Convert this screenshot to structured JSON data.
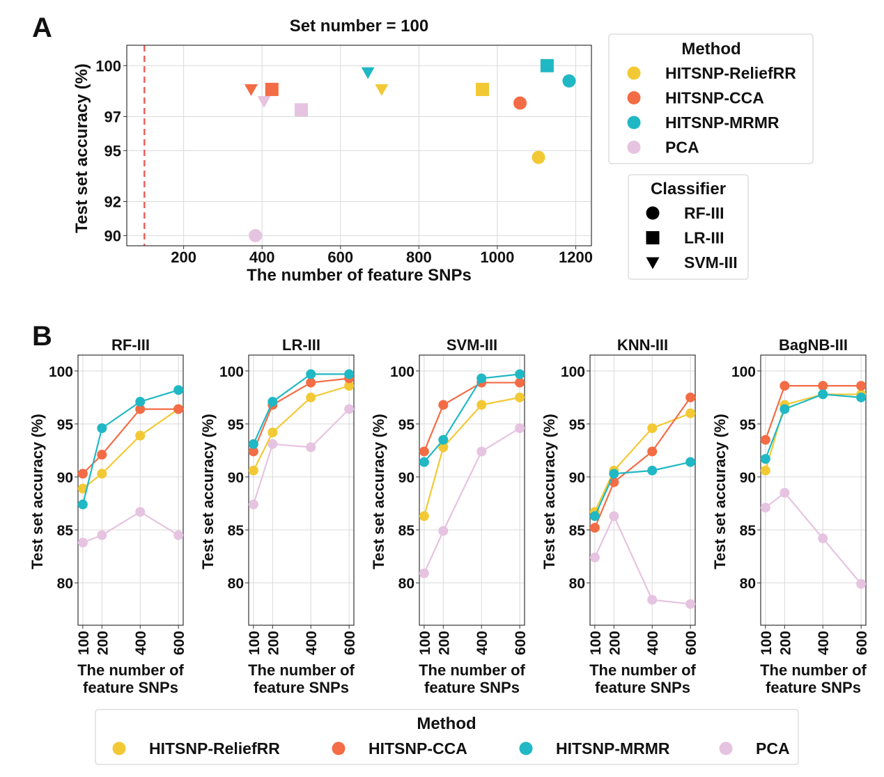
{
  "panel_letters": {
    "a": "A",
    "b": "B"
  },
  "colors": {
    "HITSNP-ReliefRR": "#f2c935",
    "HITSNP-CCA": "#f36c45",
    "HITSNP-MRMR": "#20b8c4",
    "PCA": "#e6c3e0",
    "reference_line": "#e8605a",
    "grid": "#d9d9d9"
  },
  "legends": {
    "method_title": "Method",
    "methods": [
      "HITSNP-ReliefRR",
      "HITSNP-CCA",
      "HITSNP-MRMR",
      "PCA"
    ],
    "classifier_title": "Classifier",
    "classifiers": [
      {
        "name": "RF-III",
        "marker": "circle"
      },
      {
        "name": "LR-III",
        "marker": "square"
      },
      {
        "name": "SVM-III",
        "marker": "triangle-down"
      }
    ]
  },
  "chart_data": [
    {
      "panel": "A",
      "type": "scatter",
      "title": "Set number = 100",
      "xlabel": "The number of feature SNPs",
      "ylabel": "Test set accuracy (%)",
      "xlim": [
        55,
        1240
      ],
      "ylim": [
        89.4,
        101.2
      ],
      "xticks": [
        200,
        400,
        600,
        800,
        1000,
        1200
      ],
      "yticks": [
        90,
        92,
        95,
        97,
        100
      ],
      "grid": true,
      "reference_line_x": 100,
      "points": [
        {
          "method": "HITSNP-ReliefRR",
          "classifier": "RF-III",
          "x": 1105,
          "y": 94.6
        },
        {
          "method": "HITSNP-ReliefRR",
          "classifier": "LR-III",
          "x": 962,
          "y": 98.6
        },
        {
          "method": "HITSNP-ReliefRR",
          "classifier": "SVM-III",
          "x": 705,
          "y": 98.6
        },
        {
          "method": "HITSNP-CCA",
          "classifier": "RF-III",
          "x": 1058,
          "y": 97.8
        },
        {
          "method": "HITSNP-CCA",
          "classifier": "LR-III",
          "x": 425,
          "y": 98.6
        },
        {
          "method": "HITSNP-CCA",
          "classifier": "SVM-III",
          "x": 372,
          "y": 98.6
        },
        {
          "method": "HITSNP-MRMR",
          "classifier": "RF-III",
          "x": 1183,
          "y": 99.1
        },
        {
          "method": "HITSNP-MRMR",
          "classifier": "LR-III",
          "x": 1127,
          "y": 100.0
        },
        {
          "method": "HITSNP-MRMR",
          "classifier": "SVM-III",
          "x": 670,
          "y": 99.6
        },
        {
          "method": "PCA",
          "classifier": "RF-III",
          "x": 383,
          "y": 90.0
        },
        {
          "method": "PCA",
          "classifier": "LR-III",
          "x": 500,
          "y": 97.4
        },
        {
          "method": "PCA",
          "classifier": "SVM-III",
          "x": 405,
          "y": 97.9
        }
      ]
    },
    {
      "panel": "B",
      "type": "line",
      "title": "RF-III",
      "xlabel": "The number of\nfeature SNPs",
      "ylabel": "Test set accuracy (%)",
      "x": [
        100,
        200,
        400,
        600
      ],
      "xlim": [
        75,
        625
      ],
      "ylim": [
        76,
        101.5
      ],
      "yticks": [
        80,
        85,
        90,
        95,
        100
      ],
      "grid": true,
      "series": [
        {
          "name": "HITSNP-ReliefRR",
          "values": [
            88.9,
            90.3,
            93.9,
            96.4
          ]
        },
        {
          "name": "HITSNP-CCA",
          "values": [
            90.3,
            92.1,
            96.4,
            96.4
          ]
        },
        {
          "name": "HITSNP-MRMR",
          "values": [
            87.4,
            94.6,
            97.1,
            98.2
          ]
        },
        {
          "name": "PCA",
          "values": [
            83.8,
            84.5,
            86.7,
            84.5
          ]
        }
      ]
    },
    {
      "panel": "B",
      "type": "line",
      "title": "LR-III",
      "xlabel": "The number of\nfeature SNPs",
      "ylabel": "Test set accuracy (%)",
      "x": [
        100,
        200,
        400,
        600
      ],
      "xlim": [
        75,
        625
      ],
      "ylim": [
        76,
        101.5
      ],
      "yticks": [
        80,
        85,
        90,
        95,
        100
      ],
      "grid": true,
      "series": [
        {
          "name": "HITSNP-ReliefRR",
          "values": [
            90.6,
            94.2,
            97.5,
            98.6
          ]
        },
        {
          "name": "HITSNP-CCA",
          "values": [
            92.4,
            96.8,
            98.9,
            99.3
          ]
        },
        {
          "name": "HITSNP-MRMR",
          "values": [
            93.1,
            97.1,
            99.7,
            99.7
          ]
        },
        {
          "name": "PCA",
          "values": [
            87.4,
            93.1,
            92.8,
            96.4
          ]
        }
      ]
    },
    {
      "panel": "B",
      "type": "line",
      "title": "SVM-III",
      "xlabel": "The number of\nfeature SNPs",
      "ylabel": "Test set accuracy (%)",
      "x": [
        100,
        200,
        400,
        600
      ],
      "xlim": [
        75,
        625
      ],
      "ylim": [
        76,
        101.5
      ],
      "yticks": [
        80,
        85,
        90,
        95,
        100
      ],
      "grid": true,
      "series": [
        {
          "name": "HITSNP-ReliefRR",
          "values": [
            86.3,
            92.8,
            96.8,
            97.5
          ]
        },
        {
          "name": "HITSNP-CCA",
          "values": [
            92.4,
            96.8,
            98.9,
            98.9
          ]
        },
        {
          "name": "HITSNP-MRMR",
          "values": [
            91.4,
            93.5,
            99.3,
            99.7
          ]
        },
        {
          "name": "PCA",
          "values": [
            80.9,
            84.9,
            92.4,
            94.6
          ]
        }
      ]
    },
    {
      "panel": "B",
      "type": "line",
      "title": "KNN-III",
      "xlabel": "The number of\nfeature SNPs",
      "ylabel": "Test set accuracy (%)",
      "x": [
        100,
        200,
        400,
        600
      ],
      "xlim": [
        75,
        625
      ],
      "ylim": [
        76,
        101.5
      ],
      "yticks": [
        80,
        85,
        90,
        95,
        100
      ],
      "grid": true,
      "series": [
        {
          "name": "HITSNP-ReliefRR",
          "values": [
            86.7,
            90.6,
            94.6,
            96.0
          ]
        },
        {
          "name": "HITSNP-CCA",
          "values": [
            85.2,
            89.5,
            92.4,
            97.5
          ]
        },
        {
          "name": "HITSNP-MRMR",
          "values": [
            86.3,
            90.3,
            90.6,
            91.4
          ]
        },
        {
          "name": "PCA",
          "values": [
            82.4,
            86.3,
            78.4,
            78.0
          ]
        }
      ]
    },
    {
      "panel": "B",
      "type": "line",
      "title": "BagNB-III",
      "xlabel": "The number of\nfeature SNPs",
      "ylabel": "Test set accuracy (%)",
      "x": [
        100,
        200,
        400,
        600
      ],
      "xlim": [
        75,
        625
      ],
      "ylim": [
        76,
        101.5
      ],
      "yticks": [
        80,
        85,
        90,
        95,
        100
      ],
      "grid": true,
      "series": [
        {
          "name": "HITSNP-ReliefRR",
          "values": [
            90.6,
            96.8,
            97.8,
            97.8
          ]
        },
        {
          "name": "HITSNP-CCA",
          "values": [
            93.5,
            98.6,
            98.6,
            98.6
          ]
        },
        {
          "name": "HITSNP-MRMR",
          "values": [
            91.7,
            96.4,
            97.8,
            97.5
          ]
        },
        {
          "name": "PCA",
          "values": [
            87.1,
            88.5,
            84.2,
            79.9
          ]
        }
      ]
    }
  ]
}
